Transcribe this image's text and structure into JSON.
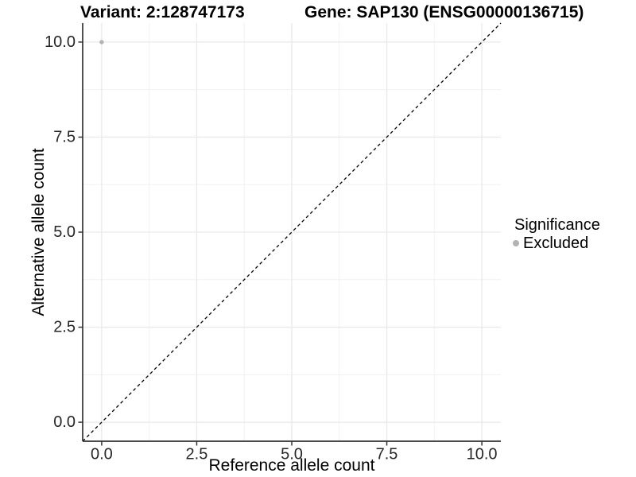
{
  "figure": {
    "title_left": "Variant: 2:128747173",
    "title_right": "Gene: SAP130 (ENSG00000136715)"
  },
  "chart_data": {
    "type": "scatter",
    "xlabel": "Reference allele count",
    "ylabel": "Alternative allele count",
    "xlim": [
      -0.5,
      10.5
    ],
    "ylim": [
      -0.5,
      10.5
    ],
    "x_major_ticks": [
      0,
      2.5,
      5,
      7.5,
      10
    ],
    "x_tick_labels": [
      "0.0",
      "2.5",
      "5.0",
      "7.5",
      "10.0"
    ],
    "y_major_ticks": [
      0,
      2.5,
      5,
      7.5,
      10
    ],
    "y_tick_labels": [
      "0.0",
      "2.5",
      "5.0",
      "7.5",
      "10.0"
    ],
    "minor_ticks": [
      1.25,
      3.75,
      6.25,
      8.75
    ],
    "grid": true,
    "series": [
      {
        "name": "Excluded",
        "color": "#b3b3b3",
        "points": [
          {
            "x": 0,
            "y": 10
          }
        ]
      }
    ],
    "reference_line": {
      "slope": 1,
      "intercept": 0,
      "style": "dashed",
      "color": "#000000"
    },
    "legend": {
      "title": "Significance",
      "position": "right",
      "entries": [
        {
          "label": "Excluded",
          "color": "#b3b3b3"
        }
      ]
    }
  },
  "colors": {
    "background": "#ffffff",
    "grid_major": "#e9e9e9",
    "grid_minor": "#f1f1f1",
    "axis_line": "#333333",
    "tick_label": "#262626",
    "point": "#b3b3b3",
    "reference_line": "#000000"
  }
}
